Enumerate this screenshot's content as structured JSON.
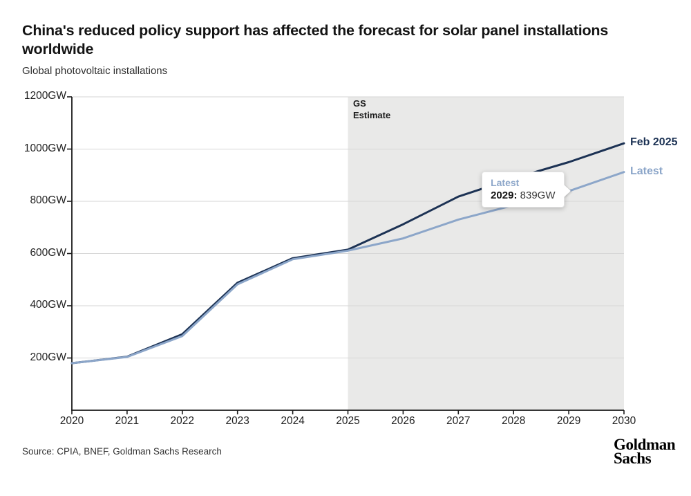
{
  "header": {
    "title_line1": "China's reduced policy support has affected the forecast for solar panel installations",
    "title_line2": "worldwide",
    "subtitle": "Global photovoltaic installations"
  },
  "estimate_label": {
    "line1": "GS",
    "line2": "Estimate"
  },
  "footer": {
    "source": "Source: CPIA, BNEF, Goldman Sachs Research",
    "logo_line1": "Goldman",
    "logo_line2": "Sachs"
  },
  "colors": {
    "feb_2025_line": "#1c3254",
    "latest_line": "#8ca6c9",
    "estimate_region": "#e9e9e8",
    "gridline": "#d6d6d6",
    "axis": "#1a1a1a",
    "text": "#1f1f1f"
  },
  "chart_data": {
    "type": "line",
    "title": "China's reduced policy support has affected the forecast for solar panel installations worldwide",
    "subtitle": "Global photovoltaic installations",
    "x": [
      2020,
      2021,
      2022,
      2023,
      2024,
      2025,
      2026,
      2027,
      2028,
      2029,
      2030
    ],
    "xlim": [
      2020,
      2030
    ],
    "ylim": [
      0,
      1200
    ],
    "y_ticks": [
      200,
      400,
      600,
      800,
      1000,
      1200
    ],
    "y_tick_suffix": "GW",
    "grid": true,
    "legend_position": "line-end-labels",
    "series": [
      {
        "name": "Feb 2025",
        "color": "#1c3254",
        "values": [
          180,
          205,
          291,
          488,
          582,
          615,
          712,
          818,
          888,
          950,
          1022
        ]
      },
      {
        "name": "Latest",
        "color": "#8ca6c9",
        "values": [
          180,
          204,
          284,
          482,
          578,
          611,
          658,
          730,
          785,
          839,
          912
        ]
      }
    ],
    "estimate_region": {
      "start": 2025,
      "end": 2030,
      "label": "GS Estimate"
    },
    "annotation": {
      "series": "Latest",
      "x": 2029,
      "y": 839,
      "x_label": "2029:",
      "value_label": "839GW"
    }
  }
}
